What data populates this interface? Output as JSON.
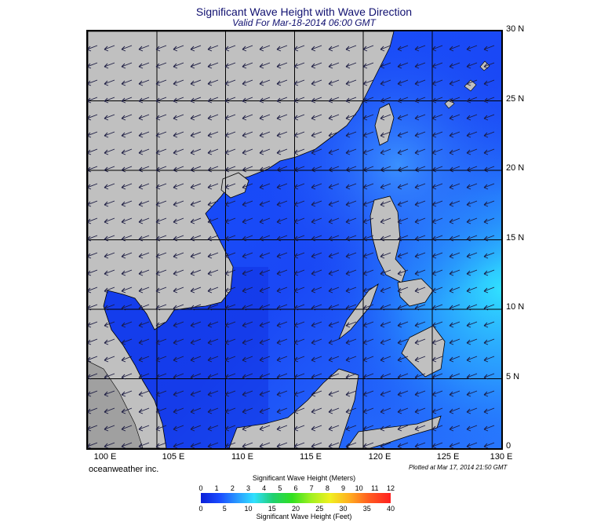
{
  "header": {
    "title": "Significant Wave Height with Wave Direction",
    "subtitle": "Valid For Mar-18-2014 06:00 GMT"
  },
  "lat_labels": [
    "30 N",
    "25 N",
    "20 N",
    "15 N",
    "10 N",
    "5 N",
    "0"
  ],
  "lon_labels": [
    "100 E",
    "105 E",
    "110 E",
    "115 E",
    "120 E",
    "125 E",
    "130 E"
  ],
  "credit": "oceanweather inc.",
  "plotted": "Plotted at Mar 17, 2014 21:50 GMT",
  "colorbar": {
    "title_meters": "Significant Wave Height (Meters)",
    "title_feet": "Significant Wave Height (Feet)",
    "meters_ticks": [
      "0",
      "1",
      "2",
      "3",
      "4",
      "5",
      "6",
      "7",
      "8",
      "9",
      "10",
      "11",
      "12"
    ],
    "feet_ticks": [
      "0",
      "5",
      "10",
      "15",
      "20",
      "25",
      "30",
      "35",
      "40"
    ]
  },
  "colors": {
    "land": "#c0c0c0",
    "sea_low": "#1a4cff",
    "sea_mid": "#2a8cff",
    "sea_high": "#30d8ff",
    "gridline": "#000000"
  }
}
